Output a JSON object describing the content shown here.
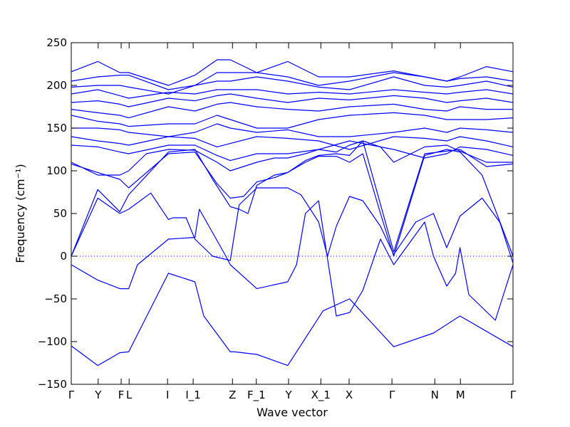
{
  "chart_data": {
    "type": "line",
    "title": "",
    "xlabel": "Wave vector",
    "ylabel": "Frequency (cm⁻¹)",
    "ylim": [
      -150,
      250
    ],
    "yticks": [
      -150,
      -100,
      -50,
      0,
      50,
      100,
      150,
      200,
      250
    ],
    "grid": false,
    "legend": "none",
    "line_color": "#0000ff",
    "zero_line_color": "#0000ff",
    "zero_line_style": "dotted",
    "xlim": [
      0,
      1
    ],
    "xticks": [
      {
        "label": "Γ",
        "pos": 0.0
      },
      {
        "label": "Y",
        "pos": 0.061
      },
      {
        "label": "F",
        "pos": 0.113
      },
      {
        "label": "L",
        "pos": 0.131
      },
      {
        "label": "I",
        "pos": 0.218
      },
      {
        "label": "I_1",
        "pos": 0.276
      },
      {
        "label": "Z",
        "pos": 0.365
      },
      {
        "label": "F_1",
        "pos": 0.419
      },
      {
        "label": "Y",
        "pos": 0.492
      },
      {
        "label": "X_1",
        "pos": 0.565
      },
      {
        "label": "X",
        "pos": 0.629
      },
      {
        "label": "Γ",
        "pos": 0.726
      },
      {
        "label": "N",
        "pos": 0.823
      },
      {
        "label": "M",
        "pos": 0.881
      },
      {
        "label": "Γ",
        "pos": 1.0
      }
    ],
    "series": [
      {
        "x": [
          0,
          0.06,
          0.11,
          0.13,
          0.22,
          0.28,
          0.3,
          0.36,
          0.37,
          0.42,
          0.49,
          0.57,
          0.63,
          0.73,
          0.82,
          0.88,
          1.0
        ],
        "y": [
          -105,
          -128,
          -113,
          -112,
          -20,
          -30,
          -70,
          -112,
          -112,
          -115,
          -128,
          -64,
          -50,
          -106,
          -90,
          -70,
          -106
        ]
      },
      {
        "x": [
          0,
          0.06,
          0.11,
          0.13,
          0.15,
          0.22,
          0.28,
          0.29,
          0.35,
          0.36,
          0.42,
          0.49,
          0.51,
          0.53,
          0.56,
          0.6,
          0.63,
          0.66,
          0.7,
          0.73,
          0.8,
          0.82,
          0.85,
          0.87,
          0.88,
          0.9,
          0.96,
          1.0
        ],
        "y": [
          -10,
          -28,
          -38,
          -38,
          -10,
          20,
          22,
          55,
          0,
          -10,
          -38,
          -30,
          -10,
          50,
          65,
          -70,
          -66,
          -40,
          20,
          -10,
          40,
          0,
          -35,
          -20,
          10,
          -45,
          -75,
          -10
        ]
      },
      {
        "x": [
          0,
          0.06,
          0.11,
          0.13,
          0.18,
          0.22,
          0.23,
          0.26,
          0.28,
          0.32,
          0.36,
          0.38,
          0.42,
          0.46,
          0.49,
          0.52,
          0.56,
          0.58,
          0.6,
          0.63,
          0.66,
          0.7,
          0.73,
          0.78,
          0.82,
          0.85,
          0.88,
          0.93,
          0.97,
          1.0
        ],
        "y": [
          0,
          68,
          50,
          55,
          74,
          43,
          45,
          45,
          20,
          0,
          -5,
          60,
          80,
          80,
          80,
          72,
          40,
          0,
          35,
          70,
          65,
          35,
          2,
          40,
          50,
          10,
          47,
          68,
          40,
          -8
        ]
      },
      {
        "x": [
          0,
          0.06,
          0.11,
          0.13,
          0.22,
          0.28,
          0.32,
          0.36,
          0.38,
          0.4,
          0.42,
          0.46,
          0.49,
          0.53,
          0.56,
          0.6,
          0.63,
          0.66,
          0.7,
          0.73,
          0.8,
          0.85,
          0.88,
          0.93,
          1.0
        ],
        "y": [
          0,
          78,
          52,
          72,
          122,
          125,
          90,
          58,
          55,
          50,
          83,
          95,
          98,
          110,
          117,
          117,
          110,
          120,
          50,
          0,
          118,
          125,
          122,
          95,
          0
        ]
      },
      {
        "x": [
          0,
          0.06,
          0.11,
          0.13,
          0.22,
          0.28,
          0.33,
          0.36,
          0.39,
          0.42,
          0.46,
          0.49,
          0.53,
          0.56,
          0.6,
          0.63,
          0.66,
          0.73,
          0.8,
          0.85,
          0.88,
          0.94,
          1.0
        ],
        "y": [
          108,
          98,
          90,
          80,
          120,
          122,
          85,
          68,
          70,
          87,
          92,
          98,
          112,
          118,
          120,
          118,
          135,
          5,
          120,
          123,
          125,
          105,
          108
        ]
      },
      {
        "x": [
          0,
          0.06,
          0.11,
          0.13,
          0.17,
          0.22,
          0.28,
          0.33,
          0.36,
          0.39,
          0.42,
          0.46,
          0.49,
          0.53,
          0.56,
          0.6,
          0.63,
          0.66,
          0.7,
          0.73,
          0.8,
          0.85,
          0.88,
          0.94,
          1.0
        ],
        "y": [
          110,
          95,
          95,
          100,
          120,
          125,
          124,
          110,
          100,
          105,
          110,
          115,
          115,
          120,
          125,
          122,
          130,
          135,
          128,
          110,
          128,
          130,
          123,
          110,
          110
        ]
      },
      {
        "x": [
          0,
          0.06,
          0.11,
          0.13,
          0.22,
          0.28,
          0.33,
          0.36,
          0.42,
          0.49,
          0.56,
          0.63,
          0.73,
          0.8,
          0.85,
          0.88,
          0.94,
          1.0
        ],
        "y": [
          130,
          128,
          122,
          120,
          130,
          130,
          118,
          112,
          120,
          120,
          125,
          135,
          125,
          115,
          120,
          128,
          125,
          118
        ]
      },
      {
        "x": [
          0,
          0.06,
          0.11,
          0.13,
          0.22,
          0.28,
          0.33,
          0.36,
          0.42,
          0.49,
          0.56,
          0.63,
          0.73,
          0.8,
          0.85,
          0.88,
          0.94,
          1.0
        ],
        "y": [
          140,
          135,
          132,
          130,
          140,
          138,
          128,
          132,
          140,
          138,
          135,
          125,
          140,
          138,
          135,
          140,
          135,
          128
        ]
      },
      {
        "x": [
          0,
          0.06,
          0.11,
          0.13,
          0.22,
          0.28,
          0.33,
          0.36,
          0.42,
          0.49,
          0.56,
          0.63,
          0.73,
          0.8,
          0.85,
          0.88,
          0.94,
          1.0
        ],
        "y": [
          150,
          150,
          148,
          145,
          140,
          145,
          155,
          150,
          145,
          148,
          140,
          140,
          145,
          150,
          145,
          150,
          148,
          145
        ]
      },
      {
        "x": [
          0,
          0.06,
          0.11,
          0.13,
          0.22,
          0.28,
          0.33,
          0.36,
          0.42,
          0.49,
          0.56,
          0.63,
          0.73,
          0.8,
          0.85,
          0.88,
          0.94,
          1.0
        ],
        "y": [
          165,
          158,
          155,
          152,
          155,
          155,
          165,
          160,
          150,
          150,
          160,
          165,
          168,
          165,
          160,
          160,
          160,
          162
        ]
      },
      {
        "x": [
          0,
          0.06,
          0.11,
          0.13,
          0.22,
          0.28,
          0.33,
          0.36,
          0.42,
          0.49,
          0.56,
          0.63,
          0.73,
          0.8,
          0.85,
          0.88,
          0.94,
          1.0
        ],
        "y": [
          172,
          168,
          165,
          162,
          175,
          170,
          178,
          180,
          175,
          172,
          170,
          175,
          178,
          172,
          170,
          175,
          172,
          172
        ]
      },
      {
        "x": [
          0,
          0.06,
          0.11,
          0.13,
          0.22,
          0.28,
          0.33,
          0.36,
          0.42,
          0.49,
          0.56,
          0.63,
          0.73,
          0.8,
          0.85,
          0.88,
          0.94,
          1.0
        ],
        "y": [
          180,
          182,
          178,
          175,
          185,
          182,
          188,
          190,
          185,
          180,
          185,
          183,
          188,
          185,
          180,
          182,
          185,
          180
        ]
      },
      {
        "x": [
          0,
          0.06,
          0.11,
          0.13,
          0.22,
          0.28,
          0.33,
          0.36,
          0.42,
          0.49,
          0.56,
          0.63,
          0.73,
          0.8,
          0.85,
          0.88,
          0.94,
          1.0
        ],
        "y": [
          190,
          195,
          188,
          185,
          192,
          190,
          195,
          195,
          195,
          190,
          192,
          190,
          195,
          192,
          190,
          192,
          195,
          190
        ]
      },
      {
        "x": [
          0,
          0.06,
          0.11,
          0.13,
          0.22,
          0.28,
          0.33,
          0.36,
          0.42,
          0.49,
          0.56,
          0.63,
          0.73,
          0.8,
          0.85,
          0.88,
          0.94,
          1.0
        ],
        "y": [
          198,
          200,
          200,
          198,
          190,
          200,
          205,
          205,
          210,
          205,
          198,
          195,
          210,
          200,
          198,
          200,
          205,
          198
        ]
      },
      {
        "x": [
          0,
          0.06,
          0.11,
          0.13,
          0.22,
          0.28,
          0.33,
          0.36,
          0.42,
          0.49,
          0.56,
          0.63,
          0.73,
          0.8,
          0.85,
          0.88,
          0.94,
          1.0
        ],
        "y": [
          205,
          210,
          212,
          212,
          195,
          200,
          215,
          215,
          215,
          210,
          200,
          205,
          215,
          210,
          205,
          208,
          210,
          205
        ]
      },
      {
        "x": [
          0,
          0.06,
          0.11,
          0.13,
          0.22,
          0.28,
          0.33,
          0.36,
          0.42,
          0.49,
          0.56,
          0.63,
          0.73,
          0.8,
          0.85,
          0.88,
          0.94,
          1.0
        ],
        "y": [
          216,
          228,
          215,
          215,
          200,
          212,
          230,
          230,
          215,
          228,
          210,
          210,
          217,
          210,
          205,
          210,
          222,
          216
        ]
      }
    ]
  }
}
